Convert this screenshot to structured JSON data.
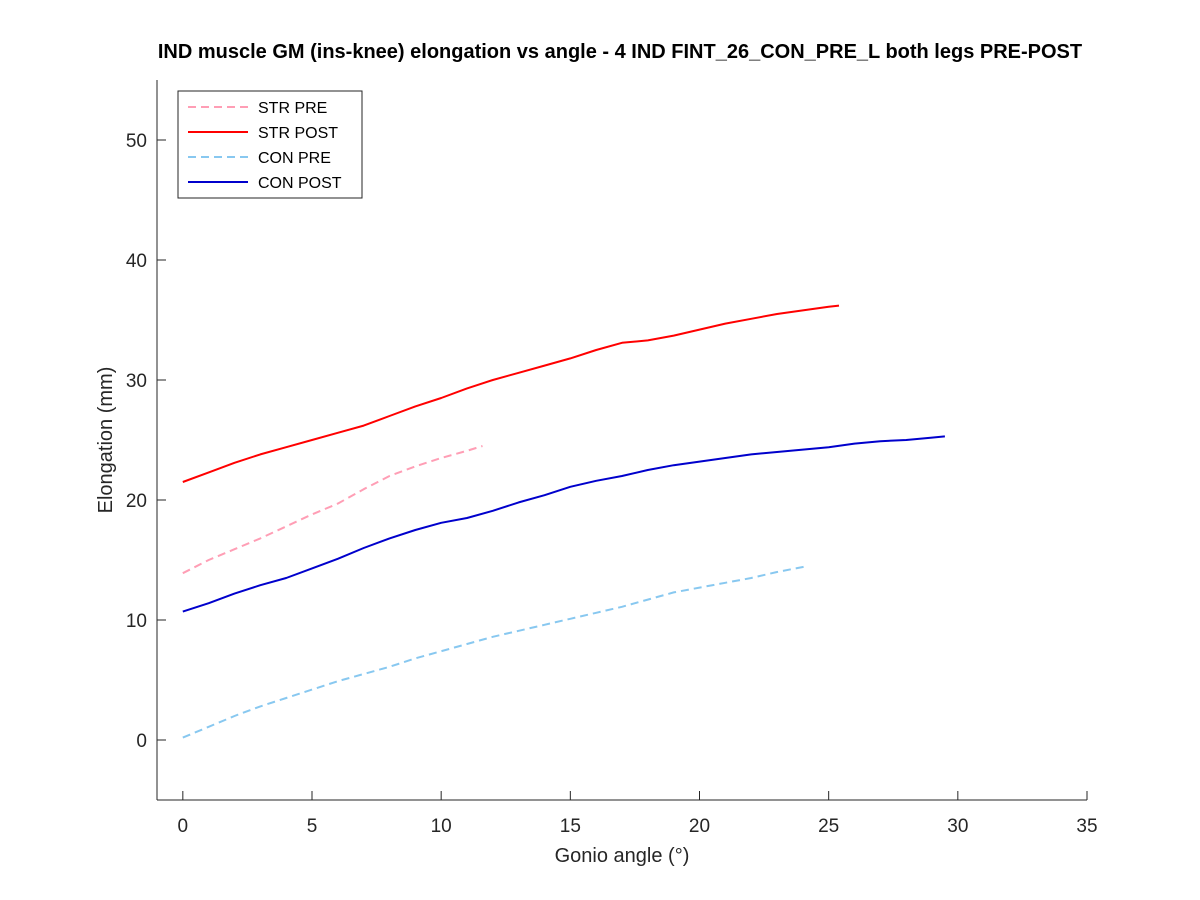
{
  "chart_data": {
    "type": "line",
    "title": "IND muscle GM (ins-knee) elongation vs angle - 4 IND FINT_26_CON_PRE_L both legs PRE-POST",
    "xlabel": "Gonio angle (°)",
    "ylabel": "Elongation (mm)",
    "xlim": [
      -1,
      35
    ],
    "ylim": [
      -5,
      55
    ],
    "xticks": [
      0,
      5,
      10,
      15,
      20,
      25,
      30,
      35
    ],
    "yticks": [
      0,
      10,
      20,
      30,
      40,
      50
    ],
    "grid": false,
    "legend_position": "top-left",
    "series": [
      {
        "name": "STR PRE",
        "color": "#ff9eb5",
        "dash": true,
        "x": [
          0,
          1,
          2,
          3,
          4,
          5,
          6,
          7,
          8,
          9,
          10,
          11,
          11.6
        ],
        "y": [
          13.9,
          15.0,
          15.9,
          16.8,
          17.8,
          18.8,
          19.7,
          20.9,
          22.0,
          22.8,
          23.5,
          24.1,
          24.5
        ]
      },
      {
        "name": "STR POST",
        "color": "#ff0000",
        "dash": false,
        "x": [
          0,
          1,
          2,
          3,
          4,
          5,
          6,
          7,
          8,
          9,
          10,
          11,
          12,
          13,
          14,
          15,
          16,
          17,
          18,
          19,
          20,
          21,
          22,
          23,
          24,
          25,
          25.4
        ],
        "y": [
          21.5,
          22.3,
          23.1,
          23.8,
          24.4,
          25.0,
          25.6,
          26.2,
          27.0,
          27.8,
          28.5,
          29.3,
          30.0,
          30.6,
          31.2,
          31.8,
          32.5,
          33.1,
          33.3,
          33.7,
          34.2,
          34.7,
          35.1,
          35.5,
          35.8,
          36.1,
          36.2
        ]
      },
      {
        "name": "CON PRE",
        "color": "#88c8f0",
        "dash": true,
        "x": [
          0,
          1,
          2,
          3,
          4,
          5,
          6,
          7,
          8,
          9,
          10,
          11,
          12,
          13,
          14,
          15,
          16,
          17,
          18,
          19,
          20,
          21,
          22,
          23,
          24.2
        ],
        "y": [
          0.2,
          1.1,
          2.0,
          2.8,
          3.5,
          4.2,
          4.9,
          5.5,
          6.1,
          6.8,
          7.4,
          8.0,
          8.6,
          9.1,
          9.6,
          10.1,
          10.6,
          11.1,
          11.7,
          12.3,
          12.7,
          13.1,
          13.5,
          14.0,
          14.5
        ]
      },
      {
        "name": "CON POST",
        "color": "#0000cc",
        "dash": false,
        "x": [
          0,
          1,
          2,
          3,
          4,
          5,
          6,
          7,
          8,
          9,
          10,
          11,
          12,
          13,
          14,
          15,
          16,
          17,
          18,
          19,
          20,
          21,
          22,
          23,
          24,
          25,
          26,
          27,
          28,
          29,
          29.5
        ],
        "y": [
          10.7,
          11.4,
          12.2,
          12.9,
          13.5,
          14.3,
          15.1,
          16.0,
          16.8,
          17.5,
          18.1,
          18.5,
          19.1,
          19.8,
          20.4,
          21.1,
          21.6,
          22.0,
          22.5,
          22.9,
          23.2,
          23.5,
          23.8,
          24.0,
          24.2,
          24.4,
          24.7,
          24.9,
          25.0,
          25.2,
          25.3
        ]
      }
    ]
  }
}
